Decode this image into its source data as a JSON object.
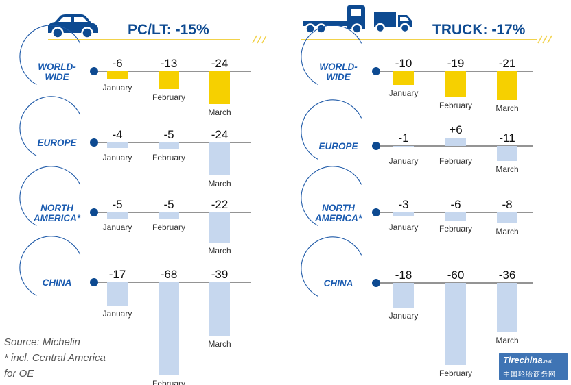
{
  "panels": [
    {
      "header": "PC/LT: -15%",
      "icon": "car-icon",
      "rows": [
        {
          "region": [
            "WORLD-",
            "WIDE"
          ],
          "values": [
            -6,
            -13,
            -24
          ],
          "labels": [
            "-6",
            "-13",
            "-24"
          ],
          "highlight": true
        },
        {
          "region": [
            "EUROPE"
          ],
          "values": [
            -4,
            -5,
            -24
          ],
          "labels": [
            "-4",
            "-5",
            "-24"
          ],
          "highlight": false
        },
        {
          "region": [
            "NORTH",
            "AMERICA*"
          ],
          "values": [
            -5,
            -5,
            -22
          ],
          "labels": [
            "-5",
            "-5",
            "-22"
          ],
          "highlight": false
        },
        {
          "region": [
            "CHINA"
          ],
          "values": [
            -17,
            -68,
            -39
          ],
          "labels": [
            "-17",
            "-68",
            "-39"
          ],
          "highlight": false
        }
      ]
    },
    {
      "header": "TRUCK: -17%",
      "icon": "truck-icon",
      "rows": [
        {
          "region": [
            "WORLD-",
            "WIDE"
          ],
          "values": [
            -10,
            -19,
            -21
          ],
          "labels": [
            "-10",
            "-19",
            "-21"
          ],
          "highlight": true
        },
        {
          "region": [
            "EUROPE"
          ],
          "values": [
            -1,
            6,
            -11
          ],
          "labels": [
            "-1",
            "+6",
            "-11"
          ],
          "highlight": false
        },
        {
          "region": [
            "NORTH",
            "AMERICA*"
          ],
          "values": [
            -3,
            -6,
            -8
          ],
          "labels": [
            "-3",
            "-6",
            "-8"
          ],
          "highlight": false
        },
        {
          "region": [
            "CHINA"
          ],
          "values": [
            -18,
            -60,
            -36
          ],
          "labels": [
            "-18",
            "-60",
            "-36"
          ],
          "highlight": false
        }
      ]
    }
  ],
  "chart_data": {
    "type": "bar",
    "unit": "%",
    "categories": [
      "January",
      "February",
      "March"
    ],
    "charts": [
      {
        "title": "PC/LT: -15%",
        "series": [
          {
            "name": "WORLD-WIDE",
            "values": [
              -6,
              -13,
              -24
            ]
          },
          {
            "name": "EUROPE",
            "values": [
              -4,
              -5,
              -24
            ]
          },
          {
            "name": "NORTH AMERICA*",
            "values": [
              -5,
              -5,
              -22
            ]
          },
          {
            "name": "CHINA",
            "values": [
              -17,
              -68,
              -39
            ]
          }
        ]
      },
      {
        "title": "TRUCK: -17%",
        "series": [
          {
            "name": "WORLD-WIDE",
            "values": [
              -10,
              -19,
              -21
            ]
          },
          {
            "name": "EUROPE",
            "values": [
              -1,
              6,
              -11
            ]
          },
          {
            "name": "NORTH AMERICA*",
            "values": [
              -3,
              -6,
              -8
            ]
          },
          {
            "name": "CHINA",
            "values": [
              -18,
              -60,
              -36
            ]
          }
        ]
      }
    ],
    "grid": false,
    "legend": "none"
  },
  "footnotes": [
    "Source: Michelin",
    "* incl. Central America",
    "for OE"
  ],
  "watermark": {
    "logo": "Tirechina",
    "logo_suffix": ".net",
    "chinese": "中国轮胎商务网"
  },
  "colors": {
    "accent_blue": "#0d4a91",
    "highlight_bar": "#f6d000",
    "regular_bar": "#c6d7ee",
    "axis": "#555555",
    "header_rule": "#f2d24a",
    "region_text": "#1a5bb0"
  }
}
